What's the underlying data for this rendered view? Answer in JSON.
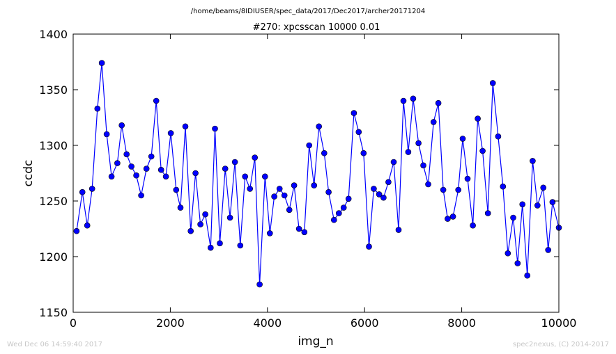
{
  "suptitle": "/home/beams/8IDIUSER/spec_data/2017/Dec2017/archer20171204",
  "footer_left": "Wed Dec 06 14:59:40 2017",
  "footer_right": "spec2nexus, (C) 2014-2017",
  "colors": {
    "series": "#0000ff",
    "frame": "#000000",
    "footer": "#c8c8c8"
  },
  "chart_data": {
    "type": "line",
    "title": "#270: xpcsscan 10000 0.01",
    "xlabel": "img_n",
    "ylabel": "ccdc",
    "xlim": [
      0,
      10000
    ],
    "ylim": [
      1150,
      1400
    ],
    "xticks": [
      0,
      2000,
      4000,
      6000,
      8000,
      10000
    ],
    "yticks": [
      1150,
      1200,
      1250,
      1300,
      1350,
      1400
    ],
    "grid": false,
    "marker": "circle",
    "series": [
      {
        "x": [
          70,
          190,
          290,
          390,
          500,
          590,
          690,
          790,
          910,
          1000,
          1100,
          1200,
          1300,
          1400,
          1510,
          1610,
          1710,
          1810,
          1910,
          2010,
          2120,
          2210,
          2310,
          2420,
          2520,
          2620,
          2720,
          2830,
          2920,
          3020,
          3130,
          3230,
          3330,
          3440,
          3540,
          3640,
          3740,
          3840,
          3950,
          4050,
          4140,
          4250,
          4350,
          4450,
          4550,
          4650,
          4760,
          4860,
          4960,
          5060,
          5170,
          5260,
          5370,
          5470,
          5570,
          5670,
          5780,
          5880,
          5980,
          6090,
          6190,
          6300,
          6390,
          6490,
          6600,
          6700,
          6800,
          6900,
          7000,
          7110,
          7210,
          7310,
          7420,
          7520,
          7620,
          7710,
          7820,
          7930,
          8020,
          8120,
          8230,
          8330,
          8430,
          8540,
          8640,
          8750,
          8850,
          8950,
          9060,
          9150,
          9250,
          9350,
          9460,
          9560,
          9680,
          9780,
          9870,
          10000
        ],
        "values": [
          1223,
          1258,
          1228,
          1261,
          1333,
          1374,
          1310,
          1272,
          1284,
          1318,
          1292,
          1281,
          1273,
          1255,
          1279,
          1290,
          1340,
          1278,
          1272,
          1311,
          1260,
          1244,
          1317,
          1223,
          1275,
          1229,
          1238,
          1208,
          1315,
          1212,
          1279,
          1235,
          1285,
          1210,
          1272,
          1261,
          1289,
          1175,
          1272,
          1221,
          1254,
          1261,
          1255,
          1242,
          1264,
          1225,
          1222,
          1300,
          1264,
          1317,
          1293,
          1258,
          1233,
          1239,
          1244,
          1252,
          1329,
          1312,
          1293,
          1209,
          1261,
          1256,
          1253,
          1267,
          1285,
          1224,
          1340,
          1294,
          1342,
          1302,
          1282,
          1265,
          1321,
          1338,
          1260,
          1234,
          1236,
          1260,
          1306,
          1270,
          1228,
          1324,
          1295,
          1239,
          1356,
          1308,
          1263,
          1203,
          1235,
          1194,
          1247,
          1183,
          1286,
          1246,
          1262,
          1206,
          1249,
          1226
        ]
      }
    ]
  }
}
